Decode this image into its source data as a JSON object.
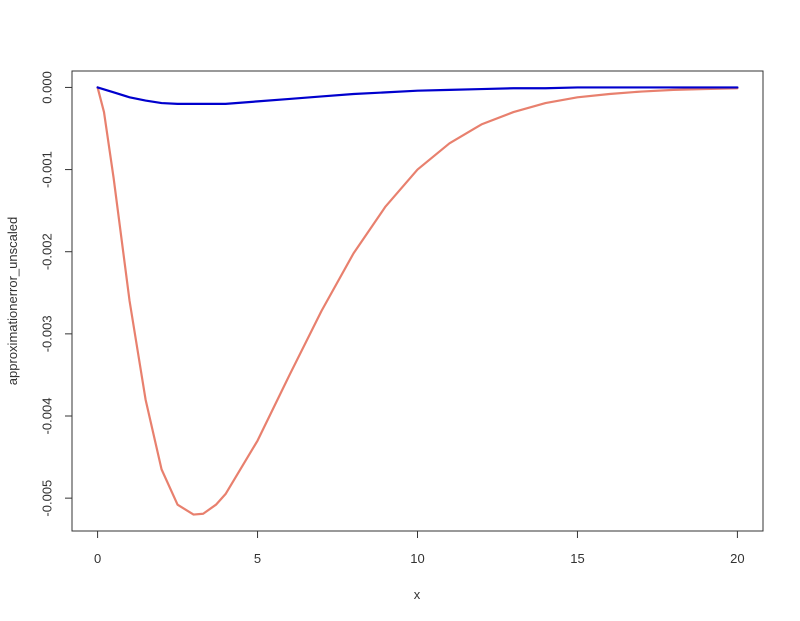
{
  "chart_data": {
    "type": "line",
    "title": "",
    "xlabel": "x",
    "ylabel": "approximationerror_unscaled",
    "xlim": [
      -0.8,
      20.8
    ],
    "ylim": [
      -0.0054,
      0.0002
    ],
    "x_ticks": [
      0,
      5,
      10,
      15,
      20
    ],
    "x_tick_labels": [
      "0",
      "5",
      "10",
      "15",
      "20"
    ],
    "y_ticks": [
      0,
      -0.001,
      -0.002,
      -0.003,
      -0.004,
      -0.005
    ],
    "y_tick_labels": [
      "0.000",
      "-0.001",
      "-0.002",
      "-0.003",
      "-0.004",
      "-0.005"
    ],
    "grid": false,
    "legend": "none",
    "series": [
      {
        "color": "#E8806E",
        "x": [
          0,
          0.2,
          0.5,
          1,
          1.5,
          2,
          2.5,
          3,
          3.3,
          3.7,
          4,
          5,
          6,
          7,
          8,
          9,
          10,
          11,
          12,
          13,
          14,
          15,
          16,
          17,
          18,
          19,
          20
        ],
        "y": [
          0,
          -0.0003,
          -0.0011,
          -0.0026,
          -0.0038,
          -0.00465,
          -0.00508,
          -0.0052,
          -0.00519,
          -0.00508,
          -0.00495,
          -0.0043,
          -0.0035,
          -0.00272,
          -0.00202,
          -0.00145,
          -0.001,
          -0.00068,
          -0.00045,
          -0.0003,
          -0.00019,
          -0.00012,
          -8e-05,
          -5e-05,
          -3e-05,
          -2e-05,
          -1e-05
        ]
      },
      {
        "color": "#0000CD",
        "x": [
          0,
          0.5,
          1,
          1.5,
          2,
          2.5,
          3,
          3.5,
          4,
          5,
          6,
          7,
          8,
          9,
          10,
          11,
          12,
          13,
          14,
          15,
          16,
          17,
          18,
          19,
          20
        ],
        "y": [
          0,
          -6e-05,
          -0.00012,
          -0.00016,
          -0.00019,
          -0.0002,
          -0.0002,
          -0.0002,
          -0.0002,
          -0.00017,
          -0.00014,
          -0.00011,
          -8e-05,
          -6e-05,
          -4e-05,
          -3e-05,
          -2e-05,
          -1e-05,
          -1e-05,
          0,
          0,
          0,
          0,
          0,
          0
        ]
      }
    ]
  }
}
